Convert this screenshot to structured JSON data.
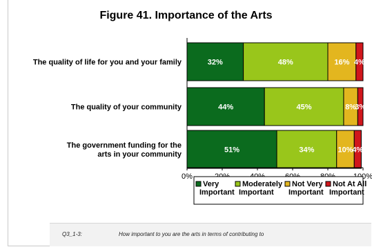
{
  "title": "Figure 41.  Importance of the Arts",
  "note": {
    "code": "Q3_1-3:",
    "text": "How important to you are the arts in terms of contributing to"
  },
  "chart_data": {
    "type": "bar",
    "orientation": "horizontal",
    "stacked": true,
    "categories": [
      [
        "The quality of life for you and your family"
      ],
      [
        "The quality of your community"
      ],
      [
        "The government funding for the",
        "arts in your community"
      ]
    ],
    "series": [
      {
        "name": "Very Important",
        "legend_lines": [
          "Very",
          "Important"
        ],
        "color": "#0b6b1e",
        "values": [
          32,
          44,
          51
        ]
      },
      {
        "name": "Moderately Important",
        "legend_lines": [
          "Moderately",
          "Important"
        ],
        "color": "#99c61b",
        "values": [
          48,
          45,
          34
        ]
      },
      {
        "name": "Not Very Important",
        "legend_lines": [
          "Not Very",
          "Important"
        ],
        "color": "#e3b61f",
        "values": [
          16,
          8,
          10
        ]
      },
      {
        "name": "Not At All Important",
        "legend_lines": [
          "Not At All",
          "Important"
        ],
        "color": "#d0161c",
        "values": [
          4,
          3,
          4
        ]
      }
    ],
    "xlim": [
      0,
      100
    ],
    "x_ticks": [
      "0%",
      "20%",
      "40%",
      "60%",
      "80%",
      "100%"
    ],
    "legend_position": "bottom-right",
    "grid": false
  }
}
